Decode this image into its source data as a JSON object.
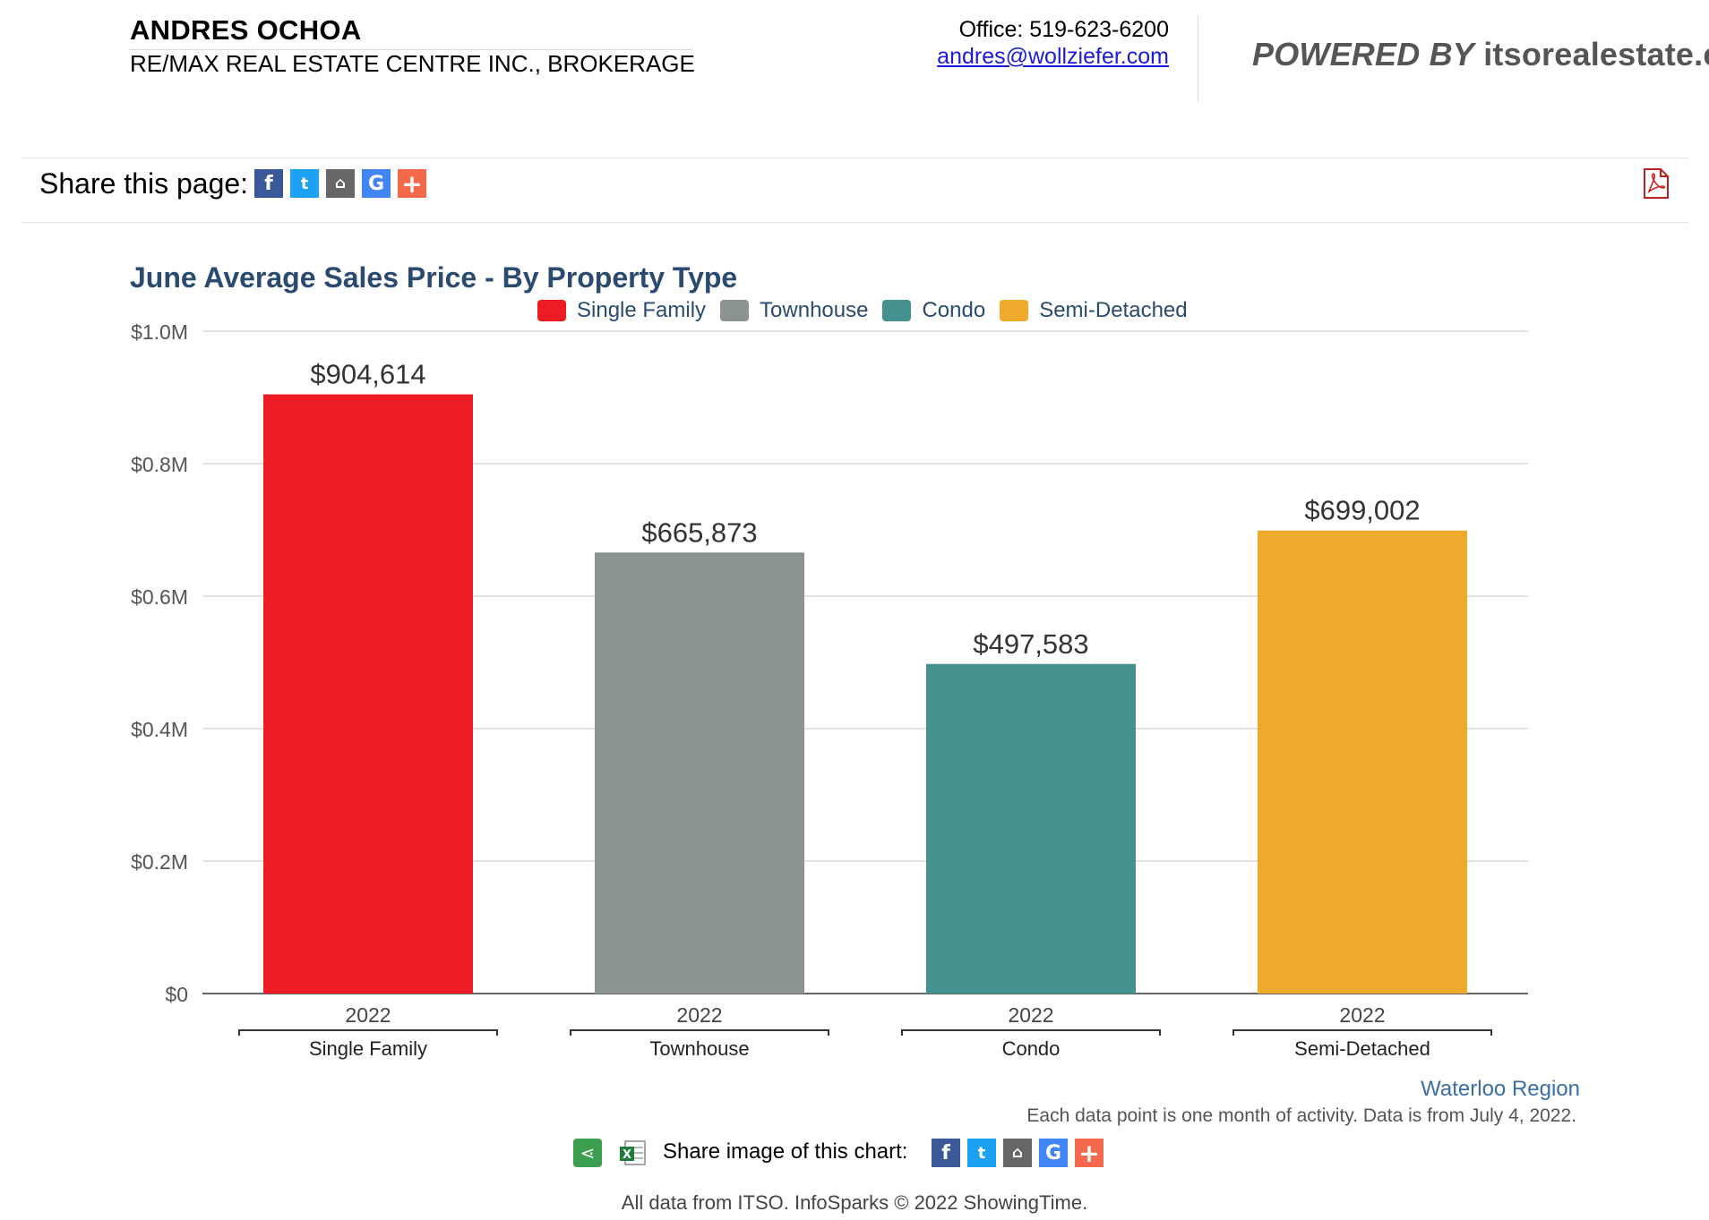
{
  "header": {
    "agent_name": "ANDRES OCHOA",
    "brokerage": "RE/MAX REAL ESTATE CENTRE INC., BROKERAGE",
    "office_phone": "Office: 519-623-6200",
    "email": "andres@wollziefer.com",
    "powered_prefix": "POWERED BY",
    "powered_brand": "itsorealestate.ca"
  },
  "share_bar": {
    "label": "Share this page:",
    "icons": [
      "facebook-icon",
      "twitter-icon",
      "realtor-icon",
      "google-icon",
      "addthis-plus-icon"
    ],
    "pdf_icon": "pdf-icon"
  },
  "chart_data": {
    "type": "bar",
    "title": "June Average Sales Price - By Property Type",
    "categories": [
      "Single Family",
      "Townhouse",
      "Condo",
      "Semi-Detached"
    ],
    "sublabels": [
      "2022",
      "2022",
      "2022",
      "2022"
    ],
    "values": [
      904614,
      665873,
      497583,
      699002
    ],
    "value_labels": [
      "$904,614",
      "$665,873",
      "$497,583",
      "$699,002"
    ],
    "colors": [
      "#ed1c24",
      "#8a9390",
      "#44918f",
      "#eeaa2b"
    ],
    "legend": [
      {
        "name": "Single Family",
        "color": "#ed1c24"
      },
      {
        "name": "Townhouse",
        "color": "#8a9390"
      },
      {
        "name": "Condo",
        "color": "#44918f"
      },
      {
        "name": "Semi-Detached",
        "color": "#eeaa2b"
      }
    ],
    "legend_position": "top-center",
    "ylim": [
      0,
      1000000
    ],
    "yticks": [
      0,
      200000,
      400000,
      600000,
      800000,
      1000000
    ],
    "ytick_labels": [
      "$0",
      "$0.2M",
      "$0.4M",
      "$0.6M",
      "$0.8M",
      "$1.0M"
    ],
    "grid": true
  },
  "footer": {
    "region": "Waterloo Region",
    "note": "Each data point is one month of activity. Data is from July 4, 2022.",
    "share_image_label": "Share image of this chart:",
    "copyright": "All data from ITSO. InfoSparks © 2022 ShowingTime."
  }
}
